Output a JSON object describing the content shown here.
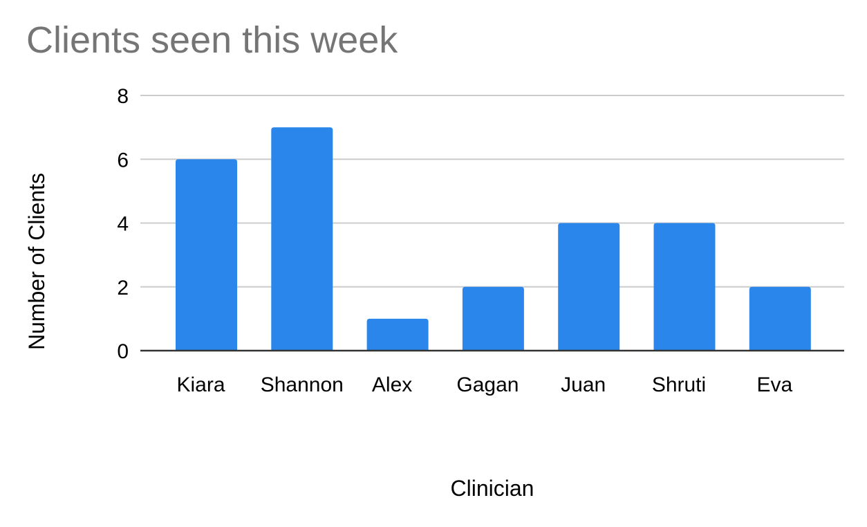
{
  "chart_data": {
    "type": "bar",
    "title": "Clients seen this week",
    "xlabel": "Clinician",
    "ylabel": "Number of Clients",
    "categories": [
      "Kiara",
      "Shannon",
      "Alex",
      "Gagan",
      "Juan",
      "Shruti",
      "Eva"
    ],
    "values": [
      6,
      7,
      1,
      2,
      4,
      4,
      2
    ],
    "ylim": [
      0,
      8
    ],
    "yticks": [
      "0",
      "2",
      "4",
      "6",
      "8"
    ],
    "grid": true,
    "legend": "none",
    "bar_color": "#2a86eb",
    "title_color": "#757575"
  }
}
